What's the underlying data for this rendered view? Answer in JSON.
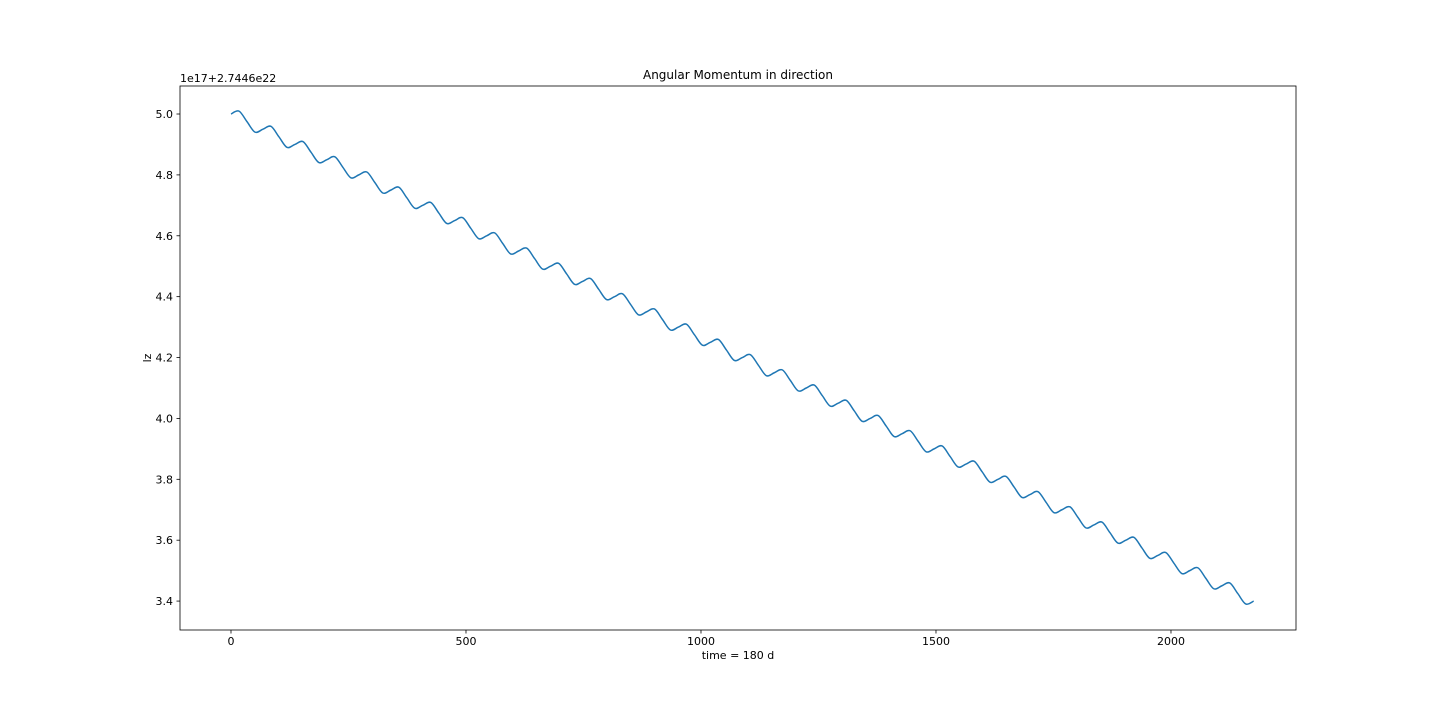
{
  "chart_data": {
    "type": "line",
    "title": "Angular Momentum in direction",
    "xlabel": "time = 180 d",
    "ylabel": "lz",
    "offset_text": "1e17+2.7446e22",
    "color": "#1f77b4",
    "x": [
      0,
      17,
      34,
      51,
      68,
      85,
      102,
      119,
      136,
      153,
      170,
      187,
      204,
      221,
      238,
      255,
      272,
      289,
      306,
      323,
      340,
      357,
      374,
      391,
      408,
      425,
      442,
      459,
      476,
      493,
      510,
      527,
      544,
      561,
      578,
      595,
      612,
      629,
      646,
      663,
      680,
      697,
      714,
      731,
      748,
      765,
      782,
      799,
      816,
      833,
      850,
      867,
      884,
      901,
      918,
      935,
      952,
      969,
      986,
      1003,
      1020,
      1037,
      1054,
      1071,
      1088,
      1105,
      1122,
      1139,
      1156,
      1173,
      1190,
      1207,
      1224,
      1241,
      1258,
      1275,
      1292,
      1309,
      1326,
      1343,
      1360,
      1377,
      1394,
      1411,
      1428,
      1445,
      1462,
      1479,
      1496,
      1513,
      1530,
      1547,
      1564,
      1581,
      1598,
      1615,
      1632,
      1649,
      1666,
      1683,
      1700,
      1717,
      1734,
      1751,
      1768,
      1785,
      1802,
      1819,
      1836,
      1853,
      1870,
      1887,
      1904,
      1921,
      1938,
      1955,
      1972,
      1989,
      2006,
      2023,
      2040,
      2057,
      2074,
      2091,
      2108,
      2125,
      2142,
      2159,
      2176
    ],
    "values": [
      5,
      5.0095,
      4.975,
      4.9405,
      4.95,
      4.9595,
      4.925,
      4.8905,
      4.9,
      4.9095,
      4.875,
      4.8405,
      4.85,
      4.8595,
      4.825,
      4.7905,
      4.8,
      4.8095,
      4.775,
      4.7405,
      4.75,
      4.7595,
      4.725,
      4.6905,
      4.7,
      4.7095,
      4.675,
      4.6405,
      4.65,
      4.6595,
      4.625,
      4.5905,
      4.6,
      4.6095,
      4.575,
      4.5405,
      4.55,
      4.5595,
      4.525,
      4.4905,
      4.5,
      4.5095,
      4.475,
      4.4405,
      4.45,
      4.4595,
      4.425,
      4.3905,
      4.4,
      4.4095,
      4.375,
      4.3405,
      4.35,
      4.3595,
      4.325,
      4.2905,
      4.3,
      4.3095,
      4.275,
      4.2405,
      4.25,
      4.2595,
      4.225,
      4.1905,
      4.2,
      4.2095,
      4.175,
      4.1405,
      4.15,
      4.1595,
      4.125,
      4.0905,
      4.1,
      4.1095,
      4.075,
      4.0405,
      4.05,
      4.0595,
      4.025,
      3.9905,
      4,
      4.0095,
      3.975,
      3.9405,
      3.95,
      3.9595,
      3.925,
      3.8905,
      3.9,
      3.9095,
      3.875,
      3.8405,
      3.85,
      3.8595,
      3.825,
      3.7905,
      3.8,
      3.8095,
      3.775,
      3.7405,
      3.75,
      3.7595,
      3.725,
      3.6905,
      3.7,
      3.7095,
      3.675,
      3.6405,
      3.65,
      3.6595,
      3.625,
      3.5905,
      3.6,
      3.6095,
      3.575,
      3.5405,
      3.55,
      3.5595,
      3.525,
      3.4905,
      3.5,
      3.5095,
      3.475,
      3.4405,
      3.45,
      3.4595,
      3.425,
      3.3905,
      3.4
    ],
    "xlim": [
      -108.5,
      2266
    ],
    "ylim": [
      3.305,
      5.092
    ],
    "xticks": [
      0,
      500,
      1000,
      1500,
      2000
    ],
    "yticks": [
      {
        "value": 3.4,
        "label": "3.4"
      },
      {
        "value": 3.6,
        "label": "3.6"
      },
      {
        "value": 3.8,
        "label": "3.8"
      },
      {
        "value": 4,
        "label": "4.0"
      },
      {
        "value": 4.2,
        "label": "4.2"
      },
      {
        "value": 4.4,
        "label": "4.4"
      },
      {
        "value": 4.6,
        "label": "4.6"
      },
      {
        "value": 4.8,
        "label": "4.8"
      },
      {
        "value": 5,
        "label": "5.0"
      }
    ]
  }
}
